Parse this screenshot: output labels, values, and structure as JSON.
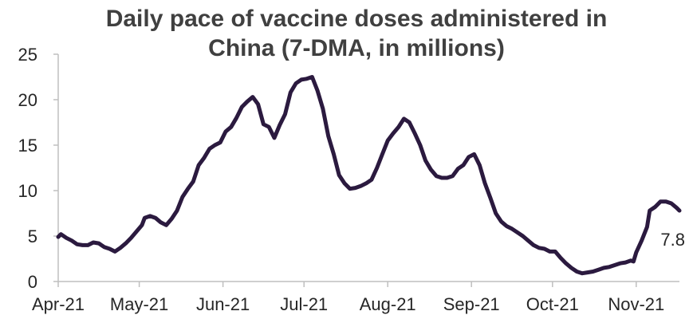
{
  "chart_data": {
    "type": "line",
    "title_lines": [
      "Daily pace of vaccine doses administered in",
      "China (7-DMA, in millions)"
    ],
    "xlabel": "",
    "ylabel": "",
    "ylim": [
      0,
      25
    ],
    "yticks": [
      0,
      5,
      10,
      15,
      20,
      25
    ],
    "x_start": "2021-04-01",
    "x_end": "2021-11-17",
    "xticks": [
      {
        "date": "2021-04-01",
        "label": "Apr-21"
      },
      {
        "date": "2021-05-01",
        "label": "May-21"
      },
      {
        "date": "2021-06-01",
        "label": "Jun-21"
      },
      {
        "date": "2021-07-01",
        "label": "Jul-21"
      },
      {
        "date": "2021-08-01",
        "label": "Aug-21"
      },
      {
        "date": "2021-09-01",
        "label": "Sep-21"
      },
      {
        "date": "2021-10-01",
        "label": "Oct-21"
      },
      {
        "date": "2021-11-01",
        "label": "Nov-21"
      }
    ],
    "grid": false,
    "legend": "none",
    "line_color": "#2b1a3f",
    "series": [
      {
        "points": [
          [
            "2021-04-01",
            4.9
          ],
          [
            "2021-04-02",
            5.2
          ],
          [
            "2021-04-04",
            4.8
          ],
          [
            "2021-04-06",
            4.5
          ],
          [
            "2021-04-08",
            4.1
          ],
          [
            "2021-04-10",
            4.0
          ],
          [
            "2021-04-12",
            4.0
          ],
          [
            "2021-04-14",
            4.3
          ],
          [
            "2021-04-16",
            4.2
          ],
          [
            "2021-04-18",
            3.8
          ],
          [
            "2021-04-20",
            3.6
          ],
          [
            "2021-04-22",
            3.3
          ],
          [
            "2021-04-24",
            3.7
          ],
          [
            "2021-04-26",
            4.2
          ],
          [
            "2021-04-28",
            4.8
          ],
          [
            "2021-04-30",
            5.5
          ],
          [
            "2021-05-02",
            6.2
          ],
          [
            "2021-05-03",
            7.0
          ],
          [
            "2021-05-05",
            7.2
          ],
          [
            "2021-05-07",
            7.0
          ],
          [
            "2021-05-09",
            6.5
          ],
          [
            "2021-05-11",
            6.2
          ],
          [
            "2021-05-13",
            6.9
          ],
          [
            "2021-05-15",
            7.8
          ],
          [
            "2021-05-17",
            9.3
          ],
          [
            "2021-05-19",
            10.2
          ],
          [
            "2021-05-21",
            11.0
          ],
          [
            "2021-05-23",
            12.8
          ],
          [
            "2021-05-25",
            13.6
          ],
          [
            "2021-05-27",
            14.6
          ],
          [
            "2021-05-29",
            15.0
          ],
          [
            "2021-05-31",
            15.3
          ],
          [
            "2021-06-02",
            16.5
          ],
          [
            "2021-06-04",
            17.0
          ],
          [
            "2021-06-06",
            18.0
          ],
          [
            "2021-06-08",
            19.2
          ],
          [
            "2021-06-10",
            19.8
          ],
          [
            "2021-06-12",
            20.3
          ],
          [
            "2021-06-14",
            19.5
          ],
          [
            "2021-06-16",
            17.3
          ],
          [
            "2021-06-18",
            17.0
          ],
          [
            "2021-06-20",
            15.8
          ],
          [
            "2021-06-22",
            17.2
          ],
          [
            "2021-06-24",
            18.4
          ],
          [
            "2021-06-26",
            20.8
          ],
          [
            "2021-06-28",
            21.8
          ],
          [
            "2021-06-30",
            22.2
          ],
          [
            "2021-07-02",
            22.3
          ],
          [
            "2021-07-04",
            22.5
          ],
          [
            "2021-07-06",
            21.0
          ],
          [
            "2021-07-08",
            19.0
          ],
          [
            "2021-07-10",
            16.0
          ],
          [
            "2021-07-12",
            14.0
          ],
          [
            "2021-07-14",
            11.7
          ],
          [
            "2021-07-16",
            10.8
          ],
          [
            "2021-07-18",
            10.2
          ],
          [
            "2021-07-20",
            10.3
          ],
          [
            "2021-07-22",
            10.5
          ],
          [
            "2021-07-24",
            10.8
          ],
          [
            "2021-07-26",
            11.2
          ],
          [
            "2021-07-28",
            12.5
          ],
          [
            "2021-07-30",
            14.0
          ],
          [
            "2021-08-01",
            15.5
          ],
          [
            "2021-08-03",
            16.3
          ],
          [
            "2021-08-05",
            17.0
          ],
          [
            "2021-08-07",
            17.9
          ],
          [
            "2021-08-09",
            17.5
          ],
          [
            "2021-08-11",
            16.3
          ],
          [
            "2021-08-13",
            15.0
          ],
          [
            "2021-08-15",
            13.3
          ],
          [
            "2021-08-17",
            12.3
          ],
          [
            "2021-08-19",
            11.6
          ],
          [
            "2021-08-21",
            11.4
          ],
          [
            "2021-08-23",
            11.4
          ],
          [
            "2021-08-25",
            11.6
          ],
          [
            "2021-08-27",
            12.4
          ],
          [
            "2021-08-29",
            12.8
          ],
          [
            "2021-08-31",
            13.7
          ],
          [
            "2021-09-02",
            14.0
          ],
          [
            "2021-09-04",
            12.8
          ],
          [
            "2021-09-06",
            10.8
          ],
          [
            "2021-09-08",
            9.2
          ],
          [
            "2021-09-10",
            7.5
          ],
          [
            "2021-09-12",
            6.6
          ],
          [
            "2021-09-14",
            6.1
          ],
          [
            "2021-09-16",
            5.8
          ],
          [
            "2021-09-18",
            5.4
          ],
          [
            "2021-09-20",
            5.0
          ],
          [
            "2021-09-22",
            4.5
          ],
          [
            "2021-09-24",
            4.0
          ],
          [
            "2021-09-26",
            3.7
          ],
          [
            "2021-09-28",
            3.6
          ],
          [
            "2021-09-30",
            3.3
          ],
          [
            "2021-10-02",
            3.3
          ],
          [
            "2021-10-04",
            2.6
          ],
          [
            "2021-10-06",
            2.0
          ],
          [
            "2021-10-08",
            1.5
          ],
          [
            "2021-10-10",
            1.1
          ],
          [
            "2021-10-12",
            0.9
          ],
          [
            "2021-10-14",
            1.0
          ],
          [
            "2021-10-16",
            1.1
          ],
          [
            "2021-10-18",
            1.3
          ],
          [
            "2021-10-20",
            1.5
          ],
          [
            "2021-10-22",
            1.6
          ],
          [
            "2021-10-24",
            1.8
          ],
          [
            "2021-10-26",
            2.0
          ],
          [
            "2021-10-28",
            2.1
          ],
          [
            "2021-10-30",
            2.3
          ],
          [
            "2021-10-31",
            2.2
          ],
          [
            "2021-11-01",
            3.2
          ],
          [
            "2021-11-03",
            4.5
          ],
          [
            "2021-11-05",
            6.0
          ],
          [
            "2021-11-06",
            7.8
          ],
          [
            "2021-11-08",
            8.2
          ],
          [
            "2021-11-10",
            8.8
          ],
          [
            "2021-11-12",
            8.8
          ],
          [
            "2021-11-14",
            8.6
          ],
          [
            "2021-11-16",
            8.1
          ],
          [
            "2021-11-17",
            7.8
          ]
        ]
      }
    ],
    "annotations": [
      {
        "text": "7.8",
        "anchor_date": "2021-11-17",
        "value": 7.8
      }
    ]
  }
}
